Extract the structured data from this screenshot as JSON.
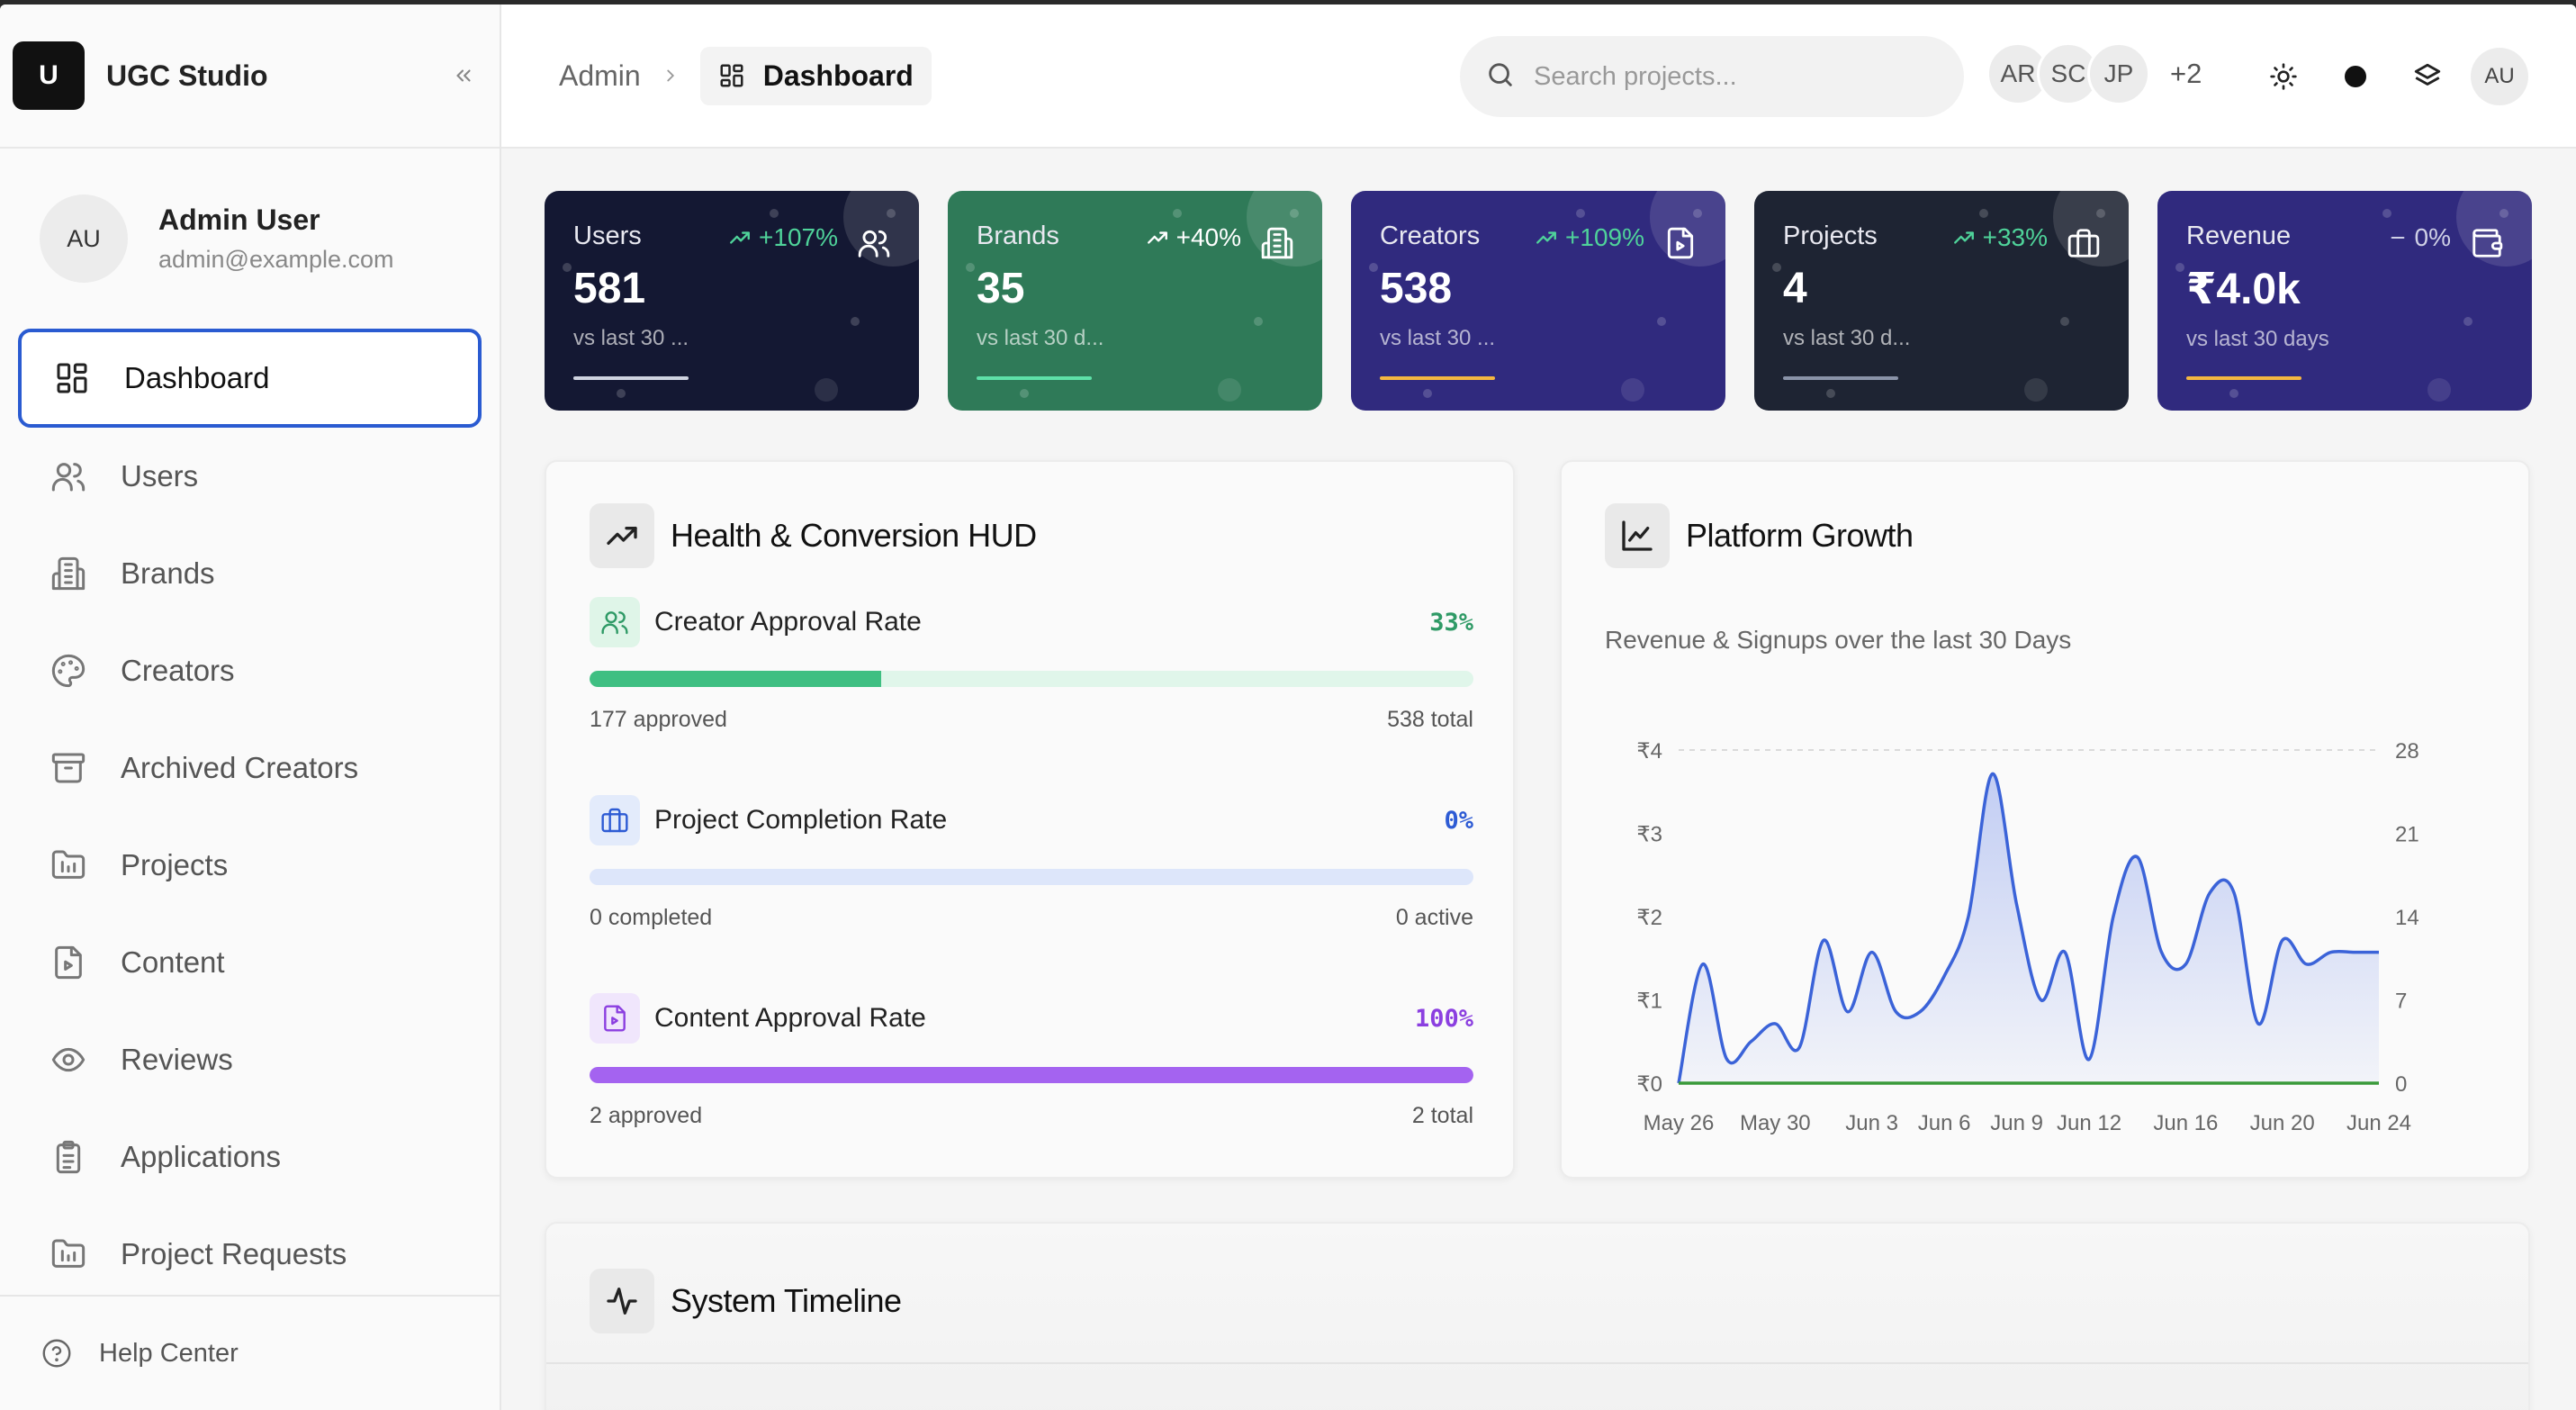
{
  "brand": {
    "logo_letter": "U",
    "name": "UGC Studio"
  },
  "user": {
    "initials": "AU",
    "name": "Admin User",
    "email": "admin@example.com"
  },
  "nav": [
    {
      "label": "Dashboard",
      "icon": "dashboard-icon",
      "active": true
    },
    {
      "label": "Users",
      "icon": "users-icon"
    },
    {
      "label": "Brands",
      "icon": "building-icon"
    },
    {
      "label": "Creators",
      "icon": "palette-icon"
    },
    {
      "label": "Archived Creators",
      "icon": "archive-icon"
    },
    {
      "label": "Projects",
      "icon": "folder-chart-icon"
    },
    {
      "label": "Content",
      "icon": "file-play-icon"
    },
    {
      "label": "Reviews",
      "icon": "eye-icon"
    },
    {
      "label": "Applications",
      "icon": "clipboard-icon"
    },
    {
      "label": "Project Requests",
      "icon": "folder-chart-icon"
    }
  ],
  "help": {
    "label": "Help Center",
    "icon": "help-circle-icon"
  },
  "breadcrumb": {
    "root": "Admin",
    "current": "Dashboard"
  },
  "search": {
    "placeholder": "Search projects..."
  },
  "collaborators": {
    "initials": [
      "AR",
      "SC",
      "JP"
    ],
    "more": "+2"
  },
  "header_avatar": "AU",
  "stats": [
    {
      "label": "Users",
      "value": "581",
      "trend": "+107%",
      "sub": "vs last 30 ...",
      "bg": "#141833",
      "bar": "#cfd3e0",
      "trend_color": "#4fd39a",
      "icon": "users-icon"
    },
    {
      "label": "Brands",
      "value": "35",
      "trend": "+40%",
      "sub": "vs last 30 d...",
      "bg": "#2f7a58",
      "bar": "#5ee0a8",
      "trend_color": "#ffffff",
      "icon": "building-icon"
    },
    {
      "label": "Creators",
      "value": "538",
      "trend": "+109%",
      "sub": "vs last 30 ...",
      "bg": "#302a7e",
      "bar": "#f4b740",
      "trend_color": "#4fd39a",
      "icon": "file-play-icon"
    },
    {
      "label": "Projects",
      "value": "4",
      "trend": "+33%",
      "sub": "vs last 30 d...",
      "bg": "#1e2433",
      "bar": "#8a93a8",
      "trend_color": "#4fd39a",
      "icon": "briefcase-icon"
    },
    {
      "label": "Revenue",
      "value": "₹4.0k",
      "trend": "0%",
      "sub": "vs last 30 days",
      "bg": "#302a7e",
      "bar": "#f4b740",
      "trend_color": "#cfd0e6",
      "icon": "wallet-icon"
    }
  ],
  "health": {
    "title": "Health & Conversion HUD",
    "metrics": [
      {
        "label": "Creator Approval Rate",
        "pct": "33%",
        "value": 0.33,
        "left": "177 approved",
        "right": "538 total",
        "color": "#3fbf82",
        "track": "#e0f6ea",
        "pct_color": "#2f9a66",
        "icon_bg": "#dff5e8",
        "icon": "users-icon"
      },
      {
        "label": "Project Completion Rate",
        "pct": "0%",
        "value": 0,
        "left": "0 completed",
        "right": "0 active",
        "color": "#3b6fe0",
        "track": "#dde6fa",
        "pct_color": "#2d5bd4",
        "icon_bg": "#e3ebfb",
        "icon": "briefcase-icon"
      },
      {
        "label": "Content Approval Rate",
        "pct": "100%",
        "value": 1,
        "left": "2 approved",
        "right": "2 total",
        "color": "#a463f0",
        "track": "#efe3fc",
        "pct_color": "#8b3fe0",
        "icon_bg": "#f0e6fc",
        "icon": "file-play-icon"
      }
    ]
  },
  "growth": {
    "title": "Platform Growth",
    "subtitle": "Revenue & Signups over the last 30 Days"
  },
  "timeline": {
    "title": "System Timeline"
  },
  "chart_data": {
    "type": "area",
    "x": [
      "May 26",
      "May 27",
      "May 28",
      "May 29",
      "May 30",
      "May 31",
      "Jun 1",
      "Jun 2",
      "Jun 3",
      "Jun 4",
      "Jun 5",
      "Jun 6",
      "Jun 7",
      "Jun 8",
      "Jun 9",
      "Jun 10",
      "Jun 11",
      "Jun 12",
      "Jun 13",
      "Jun 14",
      "Jun 15",
      "Jun 16",
      "Jun 17",
      "Jun 18",
      "Jun 19",
      "Jun 20",
      "Jun 21",
      "Jun 22",
      "Jun 23",
      "Jun 24"
    ],
    "xticks": [
      "May 26",
      "May 30",
      "Jun 3",
      "Jun 6",
      "Jun 9",
      "Jun 12",
      "Jun 16",
      "Jun 20",
      "Jun 24"
    ],
    "series": [
      {
        "axis": "right",
        "color": "#3b63d8",
        "values": [
          0,
          10,
          2,
          3.5,
          5,
          3,
          12,
          6,
          11,
          6,
          6,
          9,
          14,
          26,
          15,
          7,
          11,
          2,
          14,
          19,
          11,
          10,
          16,
          16,
          5,
          12,
          10,
          11,
          11,
          11
        ]
      },
      {
        "axis": "left",
        "color": "#3a9a3a",
        "values": [
          0,
          0,
          0,
          0,
          0,
          0,
          0,
          0,
          0,
          0,
          0,
          0,
          0,
          0,
          0,
          0,
          0,
          0,
          0,
          0,
          0,
          0,
          0,
          0,
          0,
          0,
          0,
          0,
          0,
          0
        ]
      }
    ],
    "y_left": {
      "ticks": [
        "₹0",
        "₹1",
        "₹2",
        "₹3",
        "₹4"
      ],
      "range": [
        0,
        4
      ]
    },
    "y_right": {
      "ticks": [
        "0",
        "7",
        "14",
        "21",
        "28"
      ],
      "range": [
        0,
        28
      ]
    },
    "grid": "dashed top line"
  }
}
